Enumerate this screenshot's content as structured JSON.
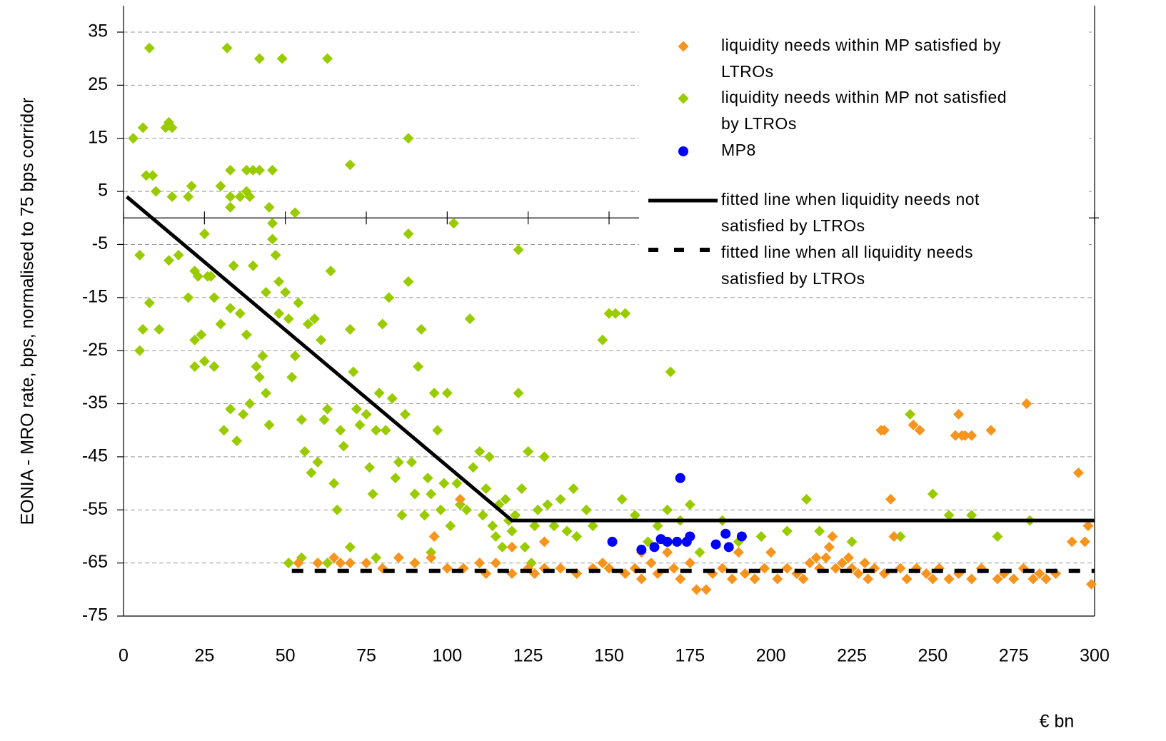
{
  "chart_data": {
    "type": "scatter",
    "y_label": "EONIA - MRO rate, bps, normalised to 75 bps corridor",
    "x_label": "€ bn",
    "xlim": [
      0,
      300
    ],
    "xticks": [
      0,
      25,
      50,
      75,
      100,
      125,
      150,
      175,
      200,
      225,
      250,
      275,
      300
    ],
    "ylim": [
      -75,
      40
    ],
    "yticks": [
      35,
      25,
      15,
      5,
      -5,
      -15,
      -25,
      -35,
      -45,
      -55,
      -65,
      -75
    ],
    "grid": true,
    "series": [
      {
        "name": "liquidity needs within MP satisfied by LTROs",
        "color": "#f7941d",
        "marker": "diamond",
        "x": [
          54,
          60,
          65,
          67,
          70,
          75,
          80,
          85,
          90,
          95,
          96,
          100,
          104,
          105,
          110,
          112,
          115,
          120,
          125,
          127,
          130,
          135,
          140,
          145,
          148,
          150,
          155,
          158,
          160,
          163,
          165,
          168,
          170,
          172,
          175,
          177,
          180,
          182,
          185,
          188,
          190,
          192,
          195,
          198,
          200,
          202,
          205,
          208,
          210,
          212,
          214,
          215,
          217,
          218,
          219,
          220,
          222,
          224,
          225,
          227,
          229,
          230,
          232,
          234,
          235,
          235,
          237,
          238,
          240,
          242,
          244,
          246,
          245,
          248,
          250,
          252,
          255,
          257,
          258,
          259,
          260,
          262,
          258,
          262,
          265,
          268,
          270,
          272,
          275,
          278,
          279,
          281,
          283,
          285,
          288,
          293,
          295,
          297,
          298,
          299,
          120,
          130,
          160
        ],
        "values": [
          -65,
          -65,
          -64,
          -65,
          -65,
          -65,
          -66,
          -64,
          -65,
          -64,
          -60,
          -66,
          -53,
          -66,
          -65,
          -67,
          -65,
          -67,
          -66,
          -67,
          -66,
          -66,
          -67,
          -66,
          -65,
          -66,
          -67,
          -66,
          -68,
          -65,
          -67,
          -63,
          -66,
          -68,
          -65,
          -70,
          -70,
          -67,
          -66,
          -68,
          -63,
          -67,
          -68,
          -66,
          -63,
          -68,
          -66,
          -67,
          -68,
          -65,
          -64,
          -66,
          -64,
          -62,
          -60,
          -66,
          -65,
          -64,
          -66,
          -67,
          -65,
          -68,
          -66,
          -40,
          -40,
          -67,
          -53,
          -60,
          -66,
          -68,
          -39,
          -40,
          -66,
          -67,
          -68,
          -66,
          -68,
          -41,
          -37,
          -41,
          -41,
          -41,
          -67,
          -68,
          -66,
          -40,
          -68,
          -67,
          -68,
          -66,
          -35,
          -68,
          -67,
          -68,
          -67,
          -61,
          -48,
          -61,
          -58,
          -69,
          -62,
          -61,
          -63
        ]
      },
      {
        "name": "liquidity needs within MP not satisfied by LTROs",
        "color": "#99cc00",
        "marker": "diamond",
        "x": [
          3,
          6,
          7,
          8,
          9,
          10,
          13,
          14,
          15,
          15,
          20,
          21,
          30,
          32,
          33,
          33,
          33,
          36,
          38,
          39,
          38,
          40,
          42,
          42,
          45,
          46,
          49,
          53,
          63,
          70,
          88,
          5,
          6,
          5,
          8,
          11,
          14,
          17,
          20,
          22,
          23,
          24,
          25,
          26,
          27,
          22,
          22,
          25,
          28,
          28,
          30,
          33,
          31,
          33,
          35,
          37,
          34,
          36,
          38,
          39,
          40,
          41,
          42,
          43,
          44,
          44,
          45,
          46,
          46,
          47,
          48,
          48,
          50,
          51,
          52,
          53,
          54,
          55,
          56,
          57,
          58,
          59,
          60,
          61,
          62,
          63,
          64,
          65,
          66,
          67,
          68,
          70,
          71,
          72,
          73,
          75,
          76,
          77,
          78,
          79,
          80,
          81,
          82,
          83,
          84,
          85,
          86,
          87,
          88,
          88,
          89,
          90,
          91,
          92,
          93,
          94,
          95,
          96,
          97,
          98,
          99,
          100,
          101,
          102,
          103,
          104,
          106,
          107,
          108,
          110,
          111,
          112,
          113,
          114,
          115,
          116,
          117,
          118,
          119,
          120,
          121,
          122,
          122,
          123,
          124,
          125,
          126,
          127,
          128,
          130,
          131,
          133,
          135,
          137,
          139,
          140,
          143,
          145,
          148,
          150,
          152,
          154,
          155,
          158,
          162,
          165,
          168,
          169,
          172,
          175,
          178,
          185,
          190,
          197,
          205,
          211,
          215,
          225,
          240,
          243,
          250,
          255,
          262,
          270,
          280,
          51,
          55,
          60,
          63,
          70,
          78,
          90,
          95
        ],
        "values": [
          15,
          17,
          8,
          32,
          8,
          5,
          17,
          18,
          17,
          4,
          4,
          6,
          6,
          32,
          2,
          4,
          9,
          4,
          5,
          4,
          9,
          9,
          30,
          9,
          2,
          9,
          30,
          1,
          30,
          10,
          15,
          -7,
          -21,
          -25,
          -16,
          -21,
          -8,
          -7,
          -15,
          -10,
          -11,
          -22,
          -3,
          -11,
          -11,
          -23,
          -28,
          -27,
          -15,
          -28,
          -20,
          -17,
          -40,
          -36,
          -42,
          -37,
          -9,
          -18,
          -22,
          -35,
          -9,
          -28,
          -30,
          -26,
          -33,
          -14,
          -39,
          -4,
          -1,
          -7,
          -18,
          -12,
          -14,
          -19,
          -30,
          -26,
          -16,
          -38,
          -44,
          -20,
          -48,
          -19,
          -46,
          -23,
          -38,
          -36,
          -10,
          -50,
          -55,
          -40,
          -43,
          -21,
          -29,
          -36,
          -39,
          -37,
          -47,
          -52,
          -40,
          -33,
          -20,
          -40,
          -15,
          -34,
          -49,
          -46,
          -56,
          -37,
          -3,
          -12,
          -46,
          -52,
          -28,
          -21,
          -56,
          -49,
          -52,
          -33,
          -40,
          -55,
          -50,
          -33,
          -58,
          -1,
          -50,
          -54,
          -55,
          -19,
          -47,
          -44,
          -56,
          -51,
          -45,
          -58,
          -60,
          -54,
          -62,
          -53,
          -57,
          -59,
          -56,
          -6,
          -33,
          -51,
          -62,
          -44,
          -65,
          -58,
          -55,
          -45,
          -54,
          -58,
          -53,
          -59,
          -51,
          -60,
          -55,
          -58,
          -23,
          -18,
          -18,
          -53,
          -18,
          -56,
          -61,
          -58,
          -55,
          -29,
          -57,
          -54,
          -63,
          -57,
          -61,
          -60,
          -59,
          -53,
          -59,
          -61,
          -60,
          -37,
          -52,
          -56,
          -56,
          -60,
          -57,
          -65,
          -64,
          -65,
          -65,
          -62,
          -64,
          -65,
          -63
        ]
      },
      {
        "name": "MP8",
        "color": "#0000ff",
        "marker": "circle",
        "x": [
          151,
          160,
          164,
          166,
          168,
          171,
          172,
          174,
          175,
          183,
          186,
          187,
          191
        ],
        "values": [
          -61,
          -62.5,
          -62,
          -60.5,
          -61,
          -61,
          -49,
          -61,
          -60,
          -61.5,
          -59.5,
          -62,
          -60
        ]
      },
      {
        "name": "fitted line when liquidity needs not satisfied by LTROs",
        "color": "#000000",
        "marker": "line",
        "dash": false,
        "x": [
          1,
          120,
          300
        ],
        "values": [
          4,
          -57,
          -57
        ]
      },
      {
        "name": "fitted line when all liquidity needs satisfied by LTROs",
        "color": "#000000",
        "marker": "line",
        "dash": true,
        "x": [
          52,
          300
        ],
        "values": [
          -66.5,
          -66.5
        ]
      }
    ]
  }
}
